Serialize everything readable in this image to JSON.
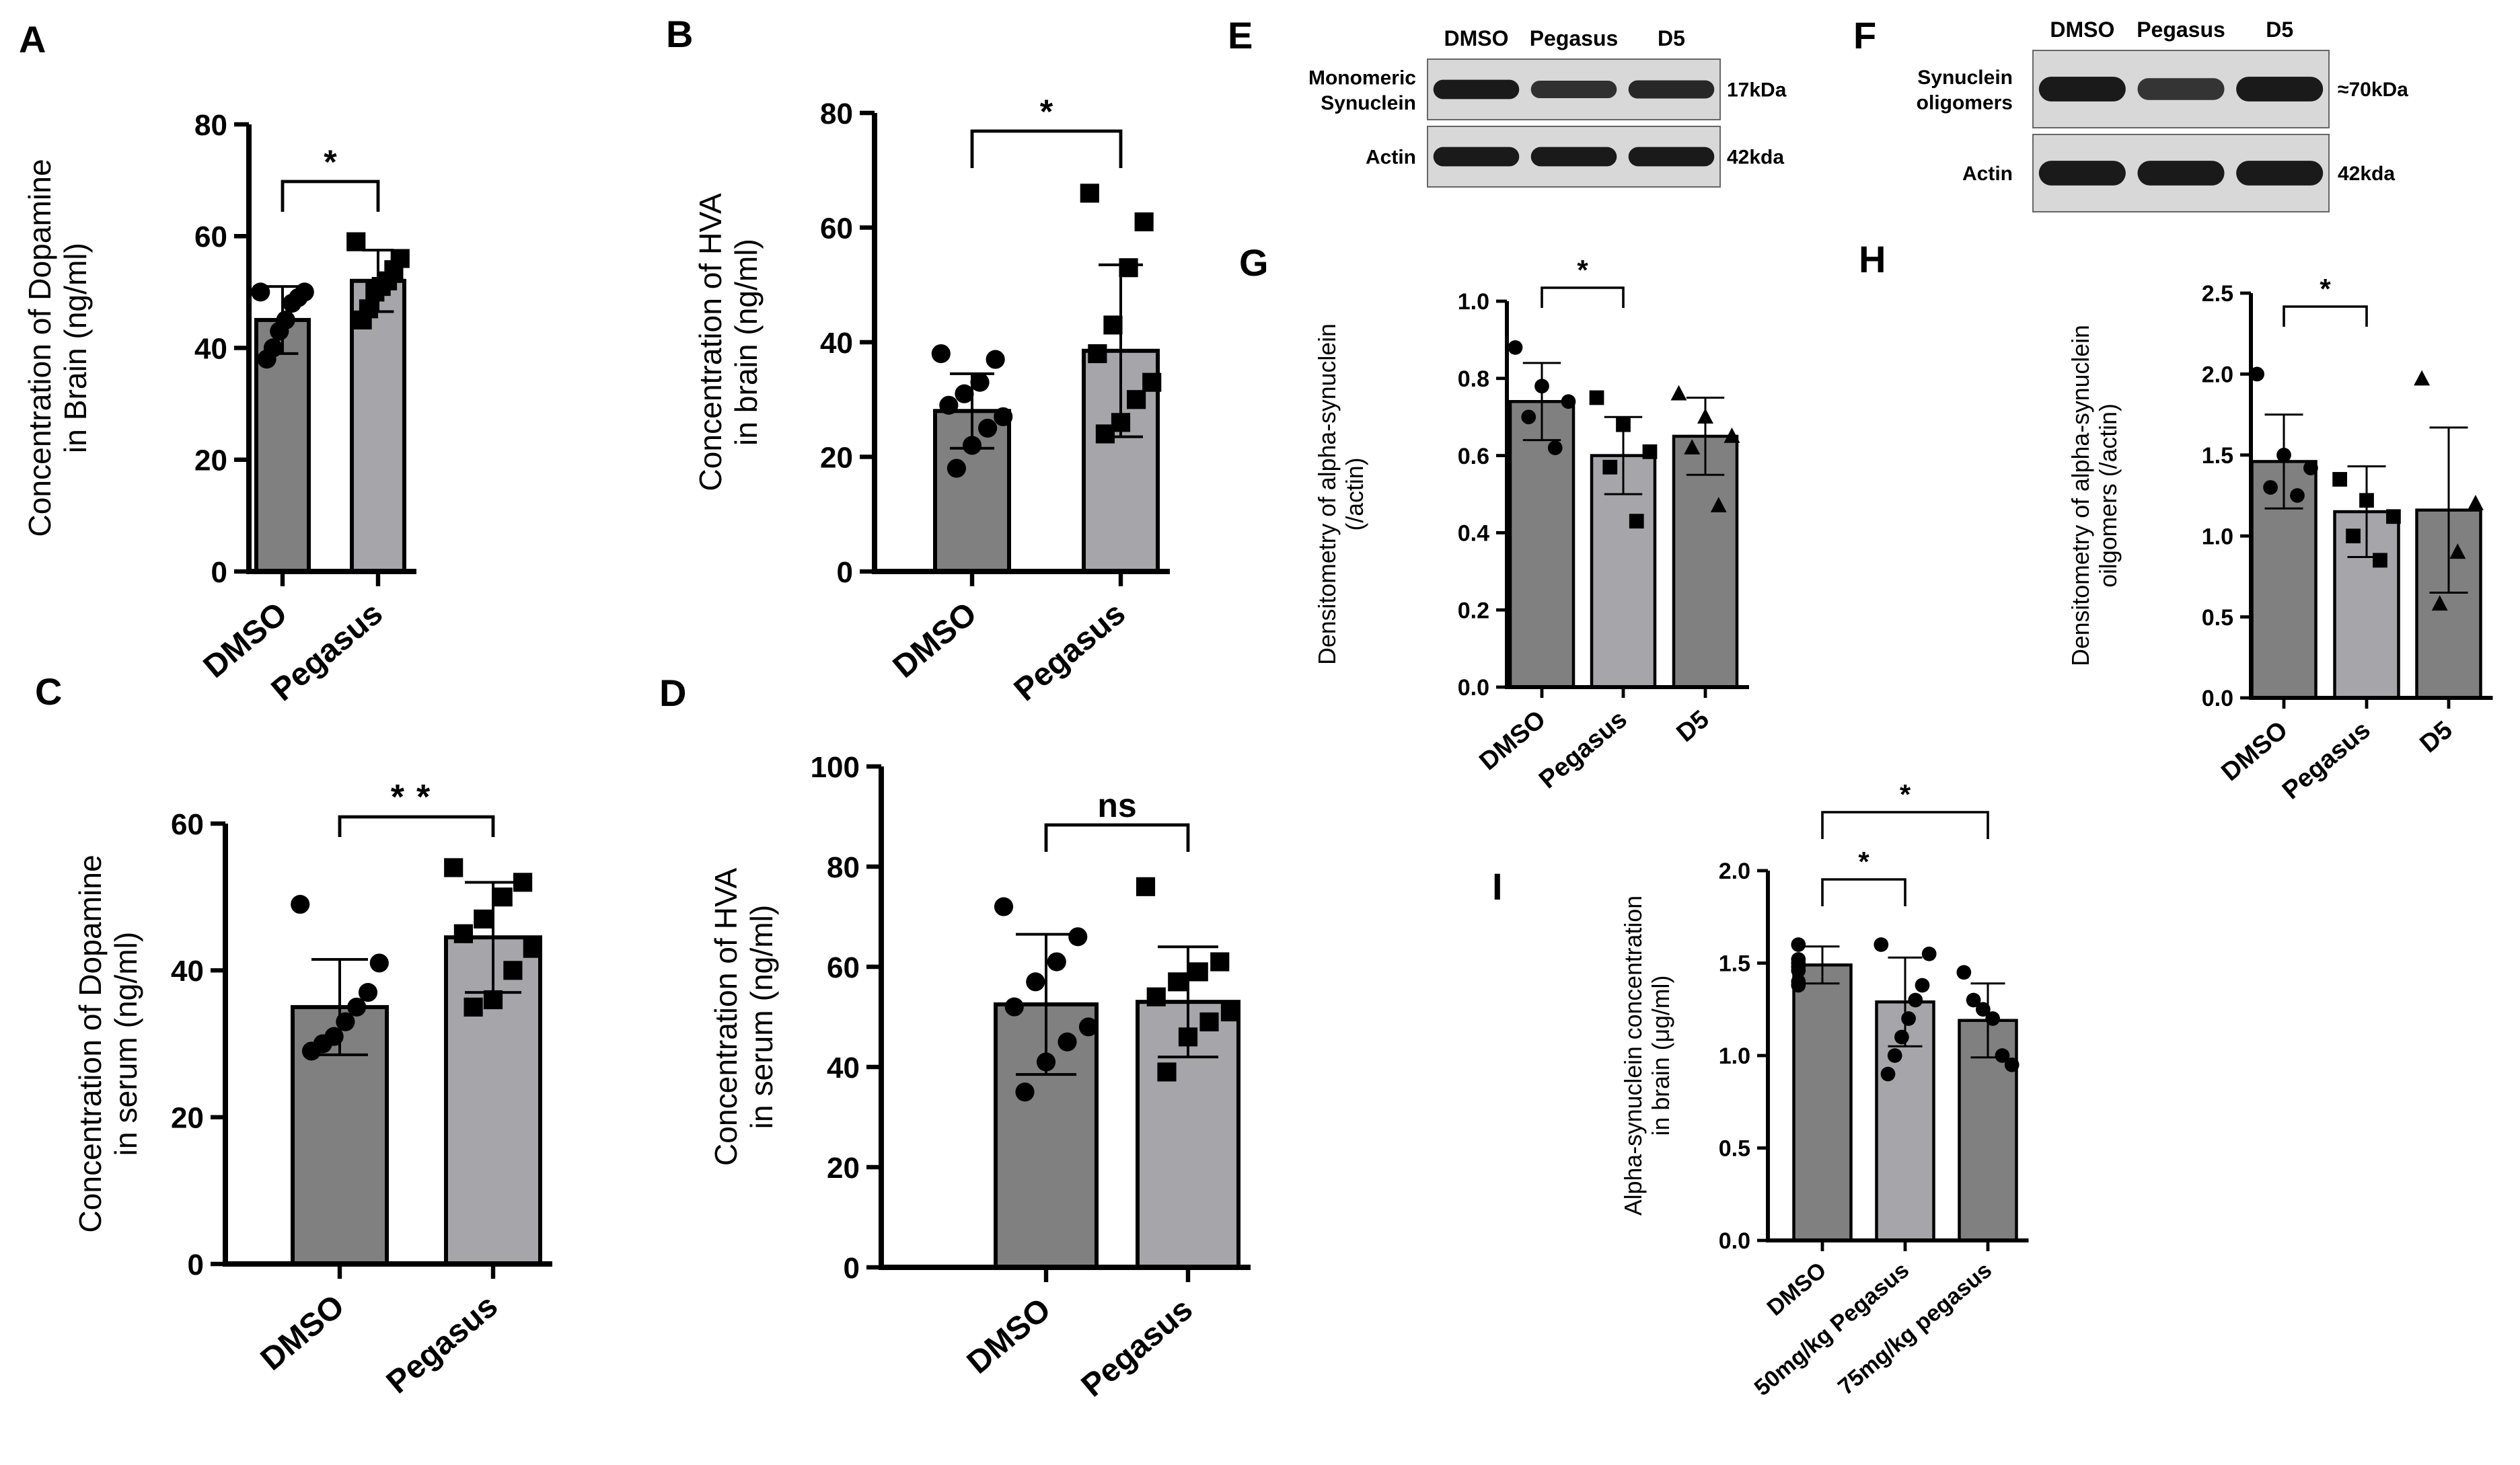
{
  "figure_panels": {
    "A": {
      "letter": "A",
      "type": "bar",
      "categories": [
        "DMSO",
        "Pegasus"
      ],
      "values": [
        45,
        52
      ],
      "errors": [
        6,
        5.5
      ],
      "points": [
        [
          50,
          50,
          49,
          48,
          45,
          43,
          40,
          38
        ],
        [
          59,
          56,
          54,
          52,
          51,
          50,
          47,
          45
        ]
      ],
      "markers": [
        "circle",
        "square"
      ],
      "ylabel": [
        "Concentration of Dopamine",
        "in Brain (ng/ml)"
      ],
      "ylim": [
        0,
        80
      ],
      "yticks": [
        0,
        20,
        40,
        60,
        80
      ],
      "significance": [
        {
          "from": 0,
          "to": 1,
          "label": "*"
        }
      ]
    },
    "B": {
      "letter": "B",
      "type": "bar",
      "categories": [
        "DMSO",
        "Pegasus"
      ],
      "values": [
        28,
        38.5
      ],
      "errors": [
        6.5,
        15
      ],
      "points": [
        [
          38,
          37,
          33,
          31,
          29,
          27,
          25,
          22,
          18
        ],
        [
          66,
          61,
          53,
          43,
          38,
          33,
          30,
          26,
          24
        ]
      ],
      "markers": [
        "circle",
        "square"
      ],
      "ylabel": [
        "Concentration of HVA",
        "in brain (ng/ml)"
      ],
      "ylim": [
        0,
        80
      ],
      "yticks": [
        0,
        20,
        40,
        60,
        80
      ],
      "significance": [
        {
          "from": 0,
          "to": 1,
          "label": "*"
        }
      ]
    },
    "C": {
      "letter": "C",
      "type": "bar",
      "categories": [
        "DMSO",
        "Pegasus"
      ],
      "values": [
        35,
        44.5
      ],
      "errors": [
        6.5,
        7.5
      ],
      "points": [
        [
          49,
          41,
          37,
          35,
          33,
          31,
          30,
          29
        ],
        [
          54,
          52,
          50,
          47,
          45,
          43,
          40,
          36,
          35
        ]
      ],
      "markers": [
        "circle",
        "square"
      ],
      "ylabel": [
        "Concentration of Dopamine",
        "in serum (ng/ml)"
      ],
      "ylim": [
        0,
        60
      ],
      "yticks": [
        0,
        20,
        40,
        60
      ],
      "significance": [
        {
          "from": 0,
          "to": 1,
          "label": "**"
        }
      ]
    },
    "D": {
      "letter": "D",
      "type": "bar",
      "categories": [
        "DMSO",
        "Pegasus"
      ],
      "values": [
        52.5,
        53
      ],
      "errors": [
        14,
        11
      ],
      "points": [
        [
          72,
          66,
          61,
          57,
          52,
          48,
          45,
          41,
          35
        ],
        [
          76,
          61,
          59,
          57,
          54,
          51,
          49,
          46,
          39
        ]
      ],
      "markers": [
        "circle",
        "square"
      ],
      "ylabel": [
        "Concentration of HVA",
        "in serum (ng/ml)"
      ],
      "ylim": [
        0,
        100
      ],
      "yticks": [
        0,
        20,
        40,
        60,
        80,
        100
      ],
      "significance": [
        {
          "from": 0,
          "to": 1,
          "label": "ns"
        }
      ]
    },
    "G": {
      "letter": "G",
      "type": "bar",
      "categories": [
        "DMSO",
        "Pegasus",
        "D5"
      ],
      "values": [
        0.74,
        0.6,
        0.65
      ],
      "errors": [
        0.1,
        0.1,
        0.1
      ],
      "points": [
        [
          0.88,
          0.78,
          0.74,
          0.7,
          0.62
        ],
        [
          0.75,
          0.68,
          0.61,
          0.57,
          0.43
        ],
        [
          0.76,
          0.7,
          0.65,
          0.62,
          0.47
        ]
      ],
      "markers": [
        "circle",
        "square",
        "triangle"
      ],
      "ylabel": [
        "Densitometry of alpha-synuclein",
        "(/actin)"
      ],
      "ylim": [
        0,
        1.0
      ],
      "yticks": [
        "0.0",
        "0.2",
        "0.4",
        "0.6",
        "0.8",
        "1.0"
      ],
      "significance": [
        {
          "from": 0,
          "to": 1,
          "label": "*"
        }
      ]
    },
    "H": {
      "letter": "H",
      "type": "bar",
      "categories": [
        "DMSO",
        "Pegasus",
        "D5"
      ],
      "values": [
        1.46,
        1.15,
        1.16
      ],
      "errors": [
        0.29,
        0.28,
        0.51
      ],
      "points": [
        [
          2.0,
          1.5,
          1.42,
          1.3,
          1.25
        ],
        [
          1.35,
          1.22,
          1.12,
          1.0,
          0.85
        ],
        [
          1.97,
          1.2,
          0.9,
          0.58
        ]
      ],
      "markers": [
        "circle",
        "square",
        "triangle"
      ],
      "ylabel": [
        "Densitometry of alpha-synuclein",
        "oilgomers (/actin)"
      ],
      "ylim": [
        0,
        2.5
      ],
      "yticks": [
        "0.0",
        "0.5",
        "1.0",
        "1.5",
        "2.0",
        "2.5"
      ],
      "significance": [
        {
          "from": 0,
          "to": 1,
          "label": "*"
        }
      ]
    },
    "I": {
      "letter": "I",
      "type": "bar",
      "categories": [
        "DMSO",
        "50mg/kg Pegasus",
        "75mg/kg pegasus"
      ],
      "values": [
        1.49,
        1.29,
        1.19
      ],
      "errors": [
        0.1,
        0.24,
        0.2
      ],
      "points": [
        [
          1.6,
          1.52,
          1.5,
          1.48,
          1.46,
          1.4,
          1.38
        ],
        [
          1.6,
          1.55,
          1.38,
          1.3,
          1.2,
          1.1,
          1.0,
          0.9
        ],
        [
          1.45,
          1.3,
          1.25,
          1.2,
          1.0,
          0.95
        ]
      ],
      "markers": [
        "circle",
        "circle",
        "circle"
      ],
      "ylabel": [
        "Alpha-synuclein concentration",
        "in brain (μg/ml)"
      ],
      "ylim": [
        0,
        2.0
      ],
      "yticks": [
        "0.0",
        "0.5",
        "1.0",
        "1.5",
        "2.0"
      ],
      "significance": [
        {
          "from": 0,
          "to": 1,
          "label": "*"
        },
        {
          "from": 0,
          "to": 2,
          "label": "*"
        }
      ]
    }
  },
  "blots": {
    "E": {
      "letter": "E",
      "lanes": [
        "DMSO",
        "Pegasus",
        "D5"
      ],
      "rows": [
        {
          "label": [
            "Monomeric",
            "Synuclein"
          ],
          "size": "17kDa",
          "intensity": [
            1.0,
            0.75,
            0.85
          ]
        },
        {
          "label": [
            "Actin"
          ],
          "size": "42kda",
          "intensity": [
            1.0,
            1.0,
            1.0
          ]
        }
      ]
    },
    "F": {
      "letter": "F",
      "lanes": [
        "DMSO",
        "Pegasus",
        "D5"
      ],
      "rows": [
        {
          "label": [
            "Synuclein",
            "oligomers"
          ],
          "size": "≈70kDa",
          "intensity": [
            1.0,
            0.7,
            1.0
          ]
        },
        {
          "label": [
            "Actin"
          ],
          "size": "42kda",
          "intensity": [
            1.0,
            1.0,
            1.0
          ]
        }
      ]
    }
  },
  "colors": {
    "bar_dark": "#808080",
    "bar_light": "#a6a6aa",
    "axis": "#000000",
    "blot_bg": "#d8d8d8",
    "band": "#1a1a1a"
  },
  "chart_data": [
    {
      "panel": "A",
      "type": "bar",
      "categories": [
        "DMSO",
        "Pegasus"
      ],
      "values": [
        45,
        52
      ],
      "ylabel": "Concentration of Dopamine in Brain (ng/ml)",
      "ylim": [
        0,
        80
      ]
    },
    {
      "panel": "B",
      "type": "bar",
      "categories": [
        "DMSO",
        "Pegasus"
      ],
      "values": [
        28,
        38.5
      ],
      "ylabel": "Concentration of HVA in brain (ng/ml)",
      "ylim": [
        0,
        80
      ]
    },
    {
      "panel": "C",
      "type": "bar",
      "categories": [
        "DMSO",
        "Pegasus"
      ],
      "values": [
        35,
        44.5
      ],
      "ylabel": "Concentration of Dopamine in serum (ng/ml)",
      "ylim": [
        0,
        60
      ]
    },
    {
      "panel": "D",
      "type": "bar",
      "categories": [
        "DMSO",
        "Pegasus"
      ],
      "values": [
        52.5,
        53
      ],
      "ylabel": "Concentration of HVA in serum (ng/ml)",
      "ylim": [
        0,
        100
      ]
    },
    {
      "panel": "G",
      "type": "bar",
      "categories": [
        "DMSO",
        "Pegasus",
        "D5"
      ],
      "values": [
        0.74,
        0.6,
        0.65
      ],
      "ylabel": "Densitometry of alpha-synuclein (/actin)",
      "ylim": [
        0,
        1.0
      ]
    },
    {
      "panel": "H",
      "type": "bar",
      "categories": [
        "DMSO",
        "Pegasus",
        "D5"
      ],
      "values": [
        1.46,
        1.15,
        1.16
      ],
      "ylabel": "Densitometry of alpha-synuclein oilgomers (/actin)",
      "ylim": [
        0,
        2.5
      ]
    },
    {
      "panel": "I",
      "type": "bar",
      "categories": [
        "DMSO",
        "50mg/kg Pegasus",
        "75mg/kg pegasus"
      ],
      "values": [
        1.49,
        1.29,
        1.19
      ],
      "ylabel": "Alpha-synuclein concentration in brain (μg/ml)",
      "ylim": [
        0,
        2.0
      ]
    }
  ]
}
